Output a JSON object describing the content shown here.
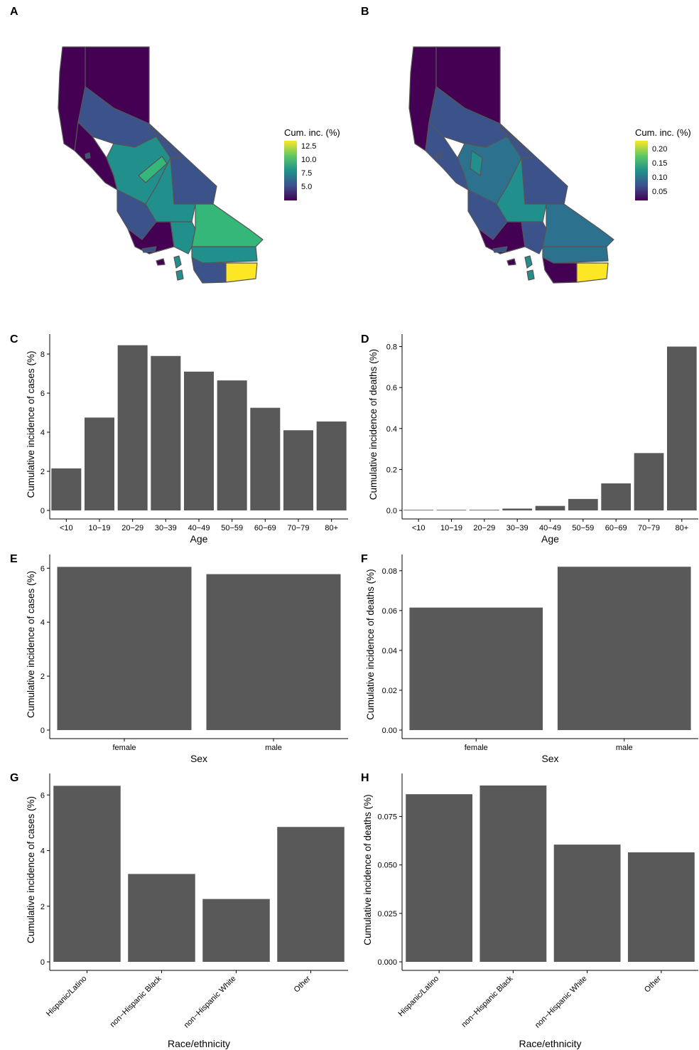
{
  "panels": {
    "A": "A",
    "B": "B",
    "C": "C",
    "D": "D",
    "E": "E",
    "F": "F",
    "G": "G",
    "H": "H"
  },
  "legends": {
    "cases": {
      "title": "Cum. inc. (%)",
      "ticks": [
        "12.5",
        "10.0",
        "7.5",
        "5.0"
      ],
      "tick_values": [
        12.5,
        10.0,
        7.5,
        5.0
      ],
      "range": [
        2.5,
        13.5
      ]
    },
    "deaths": {
      "title": "Cum. inc. (%)",
      "ticks": [
        "0.20",
        "0.15",
        "0.10",
        "0.05"
      ],
      "tick_values": [
        0.2,
        0.15,
        0.1,
        0.05
      ],
      "range": [
        0.02,
        0.23
      ]
    }
  },
  "colors": {
    "bar": "#595959",
    "viridis_low": "#440154",
    "viridis_mid": "#21908C",
    "viridis_high": "#FDE725",
    "map_border": "#555555"
  },
  "chart_data": [
    {
      "id": "C",
      "type": "bar",
      "categories": [
        "<10",
        "10−19",
        "20−29",
        "30−39",
        "40−49",
        "50−59",
        "60−69",
        "70−79",
        "80+"
      ],
      "values": [
        2.15,
        4.75,
        8.45,
        7.9,
        7.1,
        6.65,
        5.25,
        4.1,
        4.55
      ],
      "xlabel": "Age",
      "ylabel": "Cumulative incidence of cases (%)",
      "yticks": [
        "0",
        "2",
        "4",
        "6",
        "8"
      ],
      "ylim": [
        0,
        8.8
      ]
    },
    {
      "id": "D",
      "type": "bar",
      "categories": [
        "<10",
        "10−19",
        "20−29",
        "30−39",
        "40−49",
        "50−59",
        "60−69",
        "70−79",
        "80+"
      ],
      "values": [
        0.0003,
        0.001,
        0.003,
        0.009,
        0.022,
        0.056,
        0.132,
        0.28,
        0.8
      ],
      "xlabel": "Age",
      "ylabel": "Cumulative incidence of deaths (%)",
      "yticks": [
        "0.0",
        "0.2",
        "0.4",
        "0.6",
        "0.8"
      ],
      "ylim": [
        0,
        0.84
      ]
    },
    {
      "id": "E",
      "type": "bar",
      "categories": [
        "female",
        "male"
      ],
      "values": [
        6.05,
        5.78
      ],
      "xlabel": "Sex",
      "ylabel": "Cumulative incidence of cases (%)",
      "yticks": [
        "0",
        "2",
        "4",
        "6"
      ],
      "ylim": [
        0,
        6.35
      ]
    },
    {
      "id": "F",
      "type": "bar",
      "categories": [
        "female",
        "male"
      ],
      "values": [
        0.0615,
        0.082
      ],
      "xlabel": "Sex",
      "ylabel": "Cumulative incidence of deaths (%)",
      "yticks": [
        "0.00",
        "0.02",
        "0.04",
        "0.06",
        "0.08"
      ],
      "ylim": [
        0,
        0.086
      ]
    },
    {
      "id": "G",
      "type": "bar",
      "categories": [
        "Hispanic/Latino",
        "non−Hispanic Black",
        "non−Hispanic White",
        "Other"
      ],
      "values": [
        6.33,
        3.16,
        2.26,
        4.85
      ],
      "xlabel": "Race/ethnicity",
      "ylabel": "Cumulative incidence of cases (%)",
      "yticks": [
        "0",
        "2",
        "4",
        "6"
      ],
      "ylim": [
        0,
        6.62
      ]
    },
    {
      "id": "H",
      "type": "bar",
      "categories": [
        "Hispanic/Latino",
        "non−Hispanic Black",
        "non−Hispanic White",
        "Other"
      ],
      "values": [
        0.0865,
        0.091,
        0.0605,
        0.0565
      ],
      "xlabel": "Race/ethnicity",
      "ylabel": "Cumulative incidence of deaths (%)",
      "yticks": [
        "0.000",
        "0.025",
        "0.050",
        "0.075"
      ],
      "ylim": [
        0,
        0.095
      ]
    }
  ]
}
